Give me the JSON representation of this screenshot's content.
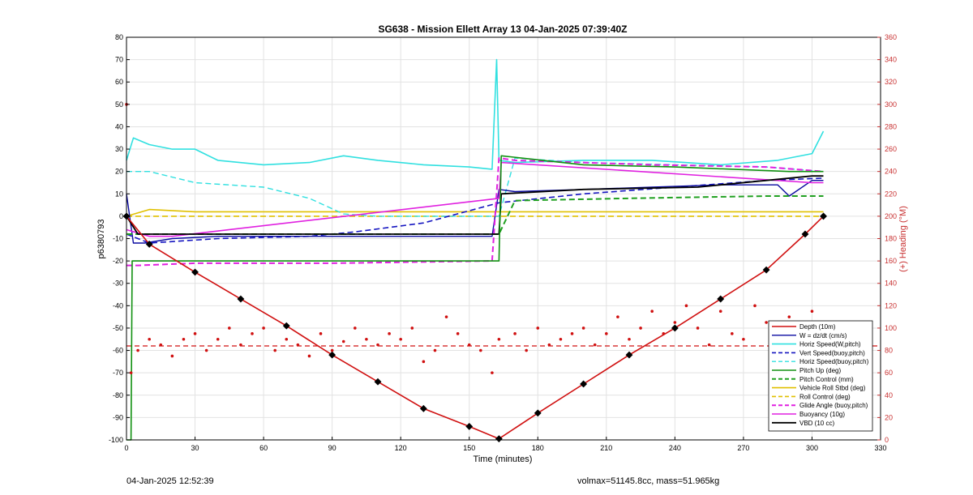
{
  "chart_data": {
    "type": "line",
    "title": "SG638 - Mission Ellett Array 13 04-Jan-2025 07:39:40Z",
    "xlabel": "Time (minutes)",
    "ylabel_left": "p6380793",
    "ylabel_right": "(+) Heading (°M)",
    "xlim": [
      0,
      330
    ],
    "ylim_left": [
      -100,
      80
    ],
    "ylim_right": [
      0,
      360
    ],
    "xticks": [
      0,
      30,
      60,
      90,
      120,
      150,
      180,
      210,
      240,
      270,
      300,
      330
    ],
    "yticks_left": [
      -100,
      -90,
      -80,
      -70,
      -60,
      -50,
      -40,
      -30,
      -20,
      -10,
      0,
      10,
      20,
      30,
      40,
      50,
      60,
      70,
      80
    ],
    "yticks_right": [
      0,
      20,
      40,
      60,
      80,
      100,
      120,
      140,
      160,
      180,
      200,
      220,
      240,
      260,
      280,
      300,
      320,
      340,
      360
    ],
    "grid": true,
    "legend_position": "bottom-right",
    "colors": {
      "depth": "#d01010",
      "w": "#0a0aa0",
      "horiz_w": "#30e0e0",
      "vert_buoy": "#1515c0",
      "horiz_buoy": "#30e0e0",
      "pitch": "#109010",
      "pitch_control": "#20a020",
      "roll": "#e0c000",
      "roll_control": "#e0c000",
      "glide": "#e020e0",
      "buoyancy": "#e020e0",
      "vbd": "#000000",
      "heading": "#d01010",
      "axis_right": "#c83030"
    },
    "series": [
      {
        "name": "Depth (10m)",
        "style": "solid-diamond",
        "x": [
          0,
          10,
          30,
          50,
          70,
          90,
          110,
          130,
          150,
          163,
          180,
          200,
          220,
          240,
          260,
          280,
          297,
          305
        ],
        "y": [
          0,
          -12.5,
          -25,
          -37,
          -49,
          -62,
          -74,
          -86,
          -94,
          -99.5,
          -88,
          -75,
          -62,
          -50,
          -37,
          -24,
          -8,
          0
        ]
      },
      {
        "name": "W = dz/dt (cm/s)",
        "style": "solid",
        "x": [
          0,
          3,
          8,
          20,
          40,
          60,
          80,
          100,
          120,
          140,
          160,
          163,
          170,
          200,
          230,
          260,
          285,
          290,
          300,
          305
        ],
        "y": [
          10,
          -12,
          -12,
          -10,
          -9,
          -9,
          -9,
          -9,
          -9,
          -9,
          -9,
          12,
          11,
          12,
          13,
          14,
          14,
          9,
          16,
          16
        ]
      },
      {
        "name": "Horiz Speed(W,pitch)",
        "style": "solid",
        "x": [
          0,
          3,
          10,
          20,
          30,
          40,
          60,
          80,
          95,
          110,
          130,
          150,
          160,
          162,
          163,
          170,
          200,
          230,
          260,
          285,
          300,
          305
        ],
        "y": [
          25,
          35,
          32,
          30,
          30,
          25,
          23,
          24,
          27,
          25,
          23,
          22,
          21,
          70,
          25,
          24,
          25,
          25,
          23,
          25,
          28,
          38
        ]
      },
      {
        "name": "Vert Speed(buoy,pitch)",
        "style": "dashed",
        "x": [
          0,
          10,
          40,
          80,
          100,
          130,
          163,
          200,
          240,
          280,
          305
        ],
        "y": [
          -8,
          -12,
          -10,
          -9,
          -7,
          -3,
          6,
          10,
          13,
          16,
          17
        ]
      },
      {
        "name": "Horiz Speed(buoy,pitch)",
        "style": "dashed",
        "x": [
          0,
          10,
          30,
          60,
          80,
          95,
          110,
          163,
          170,
          200,
          240,
          280,
          305
        ],
        "y": [
          20,
          20,
          15,
          13,
          8,
          1,
          0,
          0,
          26,
          24,
          23,
          22,
          20
        ]
      },
      {
        "name": "Pitch Up (deg)",
        "style": "solid",
        "x": [
          0,
          2,
          2.5,
          4,
          5,
          163,
          164,
          200,
          240,
          290,
          305
        ],
        "y": [
          -100,
          -100,
          -20,
          -20,
          -20,
          -20,
          27,
          23,
          22,
          20,
          20
        ]
      },
      {
        "name": "Pitch Control (mm)",
        "style": "dashed",
        "x": [
          0,
          5,
          60,
          120,
          163,
          170,
          220,
          280,
          305
        ],
        "y": [
          -8,
          -8,
          -8,
          -8,
          -8,
          7,
          8,
          9,
          9
        ]
      },
      {
        "name": "Vehicle Roll Stbd (deg)",
        "style": "solid",
        "x": [
          0,
          10,
          30,
          60,
          100,
          140,
          163,
          170,
          200,
          240,
          280,
          305
        ],
        "y": [
          0,
          3,
          2,
          2,
          2,
          2,
          2,
          2,
          2,
          2,
          2,
          2
        ]
      },
      {
        "name": "Roll Control (deg)",
        "style": "dashed",
        "x": [
          0,
          50,
          100,
          163,
          200,
          250,
          305
        ],
        "y": [
          0,
          0,
          0,
          0,
          0,
          0,
          0
        ]
      },
      {
        "name": "Glide Angle (buoy,pitch)",
        "style": "dashed",
        "x": [
          0,
          5,
          30,
          90,
          160,
          163,
          170,
          230,
          280,
          305
        ],
        "y": [
          -22,
          -22,
          -21,
          -21,
          -20,
          26,
          25,
          23,
          22,
          20
        ]
      },
      {
        "name": "Buoyancy (10g)",
        "style": "solid",
        "x": [
          0,
          10,
          20,
          163,
          164,
          300,
          305
        ],
        "y": [
          -6,
          -9,
          -9,
          8,
          24,
          15,
          15
        ]
      },
      {
        "name": "VBD (10 cc)",
        "style": "solid",
        "x": [
          0,
          5,
          20,
          100,
          163,
          164,
          200,
          250,
          300,
          305
        ],
        "y": [
          0,
          -8,
          -8,
          -8,
          -8,
          10,
          12,
          13,
          18,
          18
        ]
      }
    ],
    "heading": {
      "axis": "right",
      "reference_line": 84,
      "x": [
        0,
        2,
        5,
        10,
        15,
        20,
        25,
        30,
        35,
        40,
        45,
        50,
        55,
        60,
        65,
        70,
        75,
        80,
        85,
        90,
        95,
        100,
        105,
        110,
        115,
        120,
        125,
        130,
        135,
        140,
        145,
        150,
        155,
        160,
        163,
        170,
        175,
        180,
        185,
        190,
        195,
        200,
        205,
        210,
        215,
        220,
        225,
        230,
        235,
        240,
        245,
        250,
        255,
        260,
        265,
        270,
        275,
        280,
        285,
        290,
        295,
        300
      ],
      "y": [
        300,
        60,
        80,
        90,
        85,
        75,
        90,
        95,
        80,
        90,
        100,
        85,
        95,
        100,
        80,
        90,
        85,
        75,
        95,
        80,
        88,
        100,
        90,
        85,
        95,
        90,
        100,
        70,
        80,
        110,
        95,
        85,
        80,
        60,
        90,
        95,
        80,
        100,
        85,
        90,
        95,
        100,
        85,
        95,
        110,
        90,
        100,
        115,
        95,
        105,
        120,
        100,
        85,
        115,
        95,
        90,
        120,
        105,
        95,
        110,
        100,
        115
      ]
    },
    "legend": [
      "Depth (10m)",
      "W = dz/dt (cm/s)",
      "Horiz Speed(W,pitch)",
      "Vert Speed(buoy,pitch)",
      "Horiz Speed(buoy,pitch)",
      "Pitch Up (deg)",
      "Pitch Control (mm)",
      "Vehicle Roll Stbd (deg)",
      "Roll Control (deg)",
      "Glide Angle (buoy,pitch)",
      "Buoyancy (10g)",
      "VBD (10 cc)"
    ]
  },
  "footer": {
    "left_text": "04-Jan-2025 12:52:39",
    "right_text": "volmax=51145.8cc, mass=51.965kg"
  }
}
